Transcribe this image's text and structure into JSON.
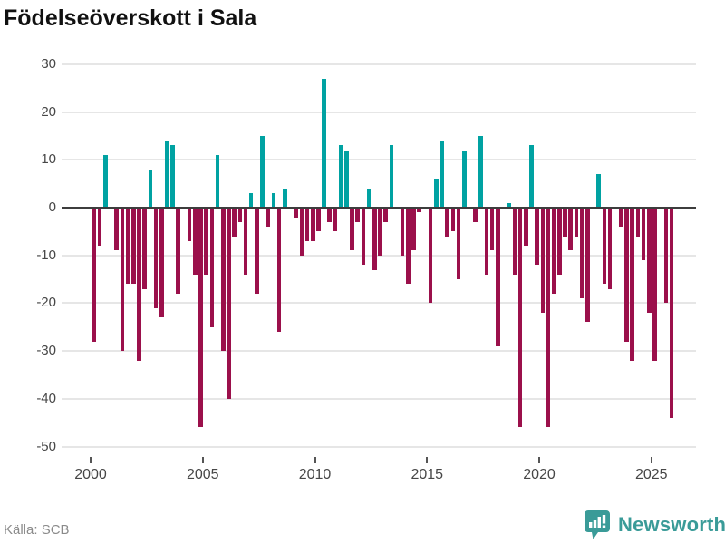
{
  "title": "Födelseöverskott i Sala",
  "source": "Källa: SCB",
  "branding": {
    "logo_text": "Newsworthy",
    "logo_color": "#3a9b98"
  },
  "colors": {
    "positive": "#00a2a2",
    "negative": "#9b104b",
    "grid": "#e6e6e6",
    "zero_line": "#3d3d3d",
    "axis_text": "#474747",
    "title_text": "#111111",
    "source_text": "#8a8a8a"
  },
  "chart_data": {
    "type": "bar",
    "title": "Födelseöverskott i Sala",
    "frequency": "quarterly",
    "start_year": 2000,
    "end_year": 2025,
    "grid": true,
    "ylim": [
      -50,
      30
    ],
    "y_ticks": [
      30,
      20,
      10,
      0,
      -10,
      -20,
      -30,
      -40,
      -50
    ],
    "x_tick_years": [
      2000,
      2005,
      2010,
      2015,
      2020,
      2025
    ],
    "values": [
      -28,
      -8,
      11,
      0,
      -9,
      -30,
      -16,
      -16,
      -32,
      -17,
      8,
      -21,
      -23,
      14,
      13,
      -18,
      0,
      -7,
      -14,
      -46,
      -14,
      -25,
      11,
      -30,
      -40,
      -6,
      -3,
      -14,
      3,
      -18,
      15,
      -4,
      3,
      -26,
      4,
      0,
      -2,
      -10,
      -7,
      -7,
      -5,
      27,
      -3,
      -5,
      13,
      12,
      -9,
      -3,
      -12,
      4,
      -13,
      -10,
      -3,
      13,
      0,
      -10,
      -16,
      -9,
      -1,
      0,
      -20,
      6,
      14,
      -6,
      -5,
      -15,
      12,
      0,
      -3,
      15,
      -14,
      -9,
      -29,
      0,
      1,
      -14,
      -46,
      -8,
      13,
      -12,
      -22,
      -46,
      -18,
      -14,
      -6,
      -9,
      -6,
      -19,
      -24,
      0,
      7,
      -16,
      -17,
      0,
      -4,
      -28,
      -32,
      -6,
      -11,
      -22,
      -32,
      0,
      -20,
      -44
    ]
  }
}
